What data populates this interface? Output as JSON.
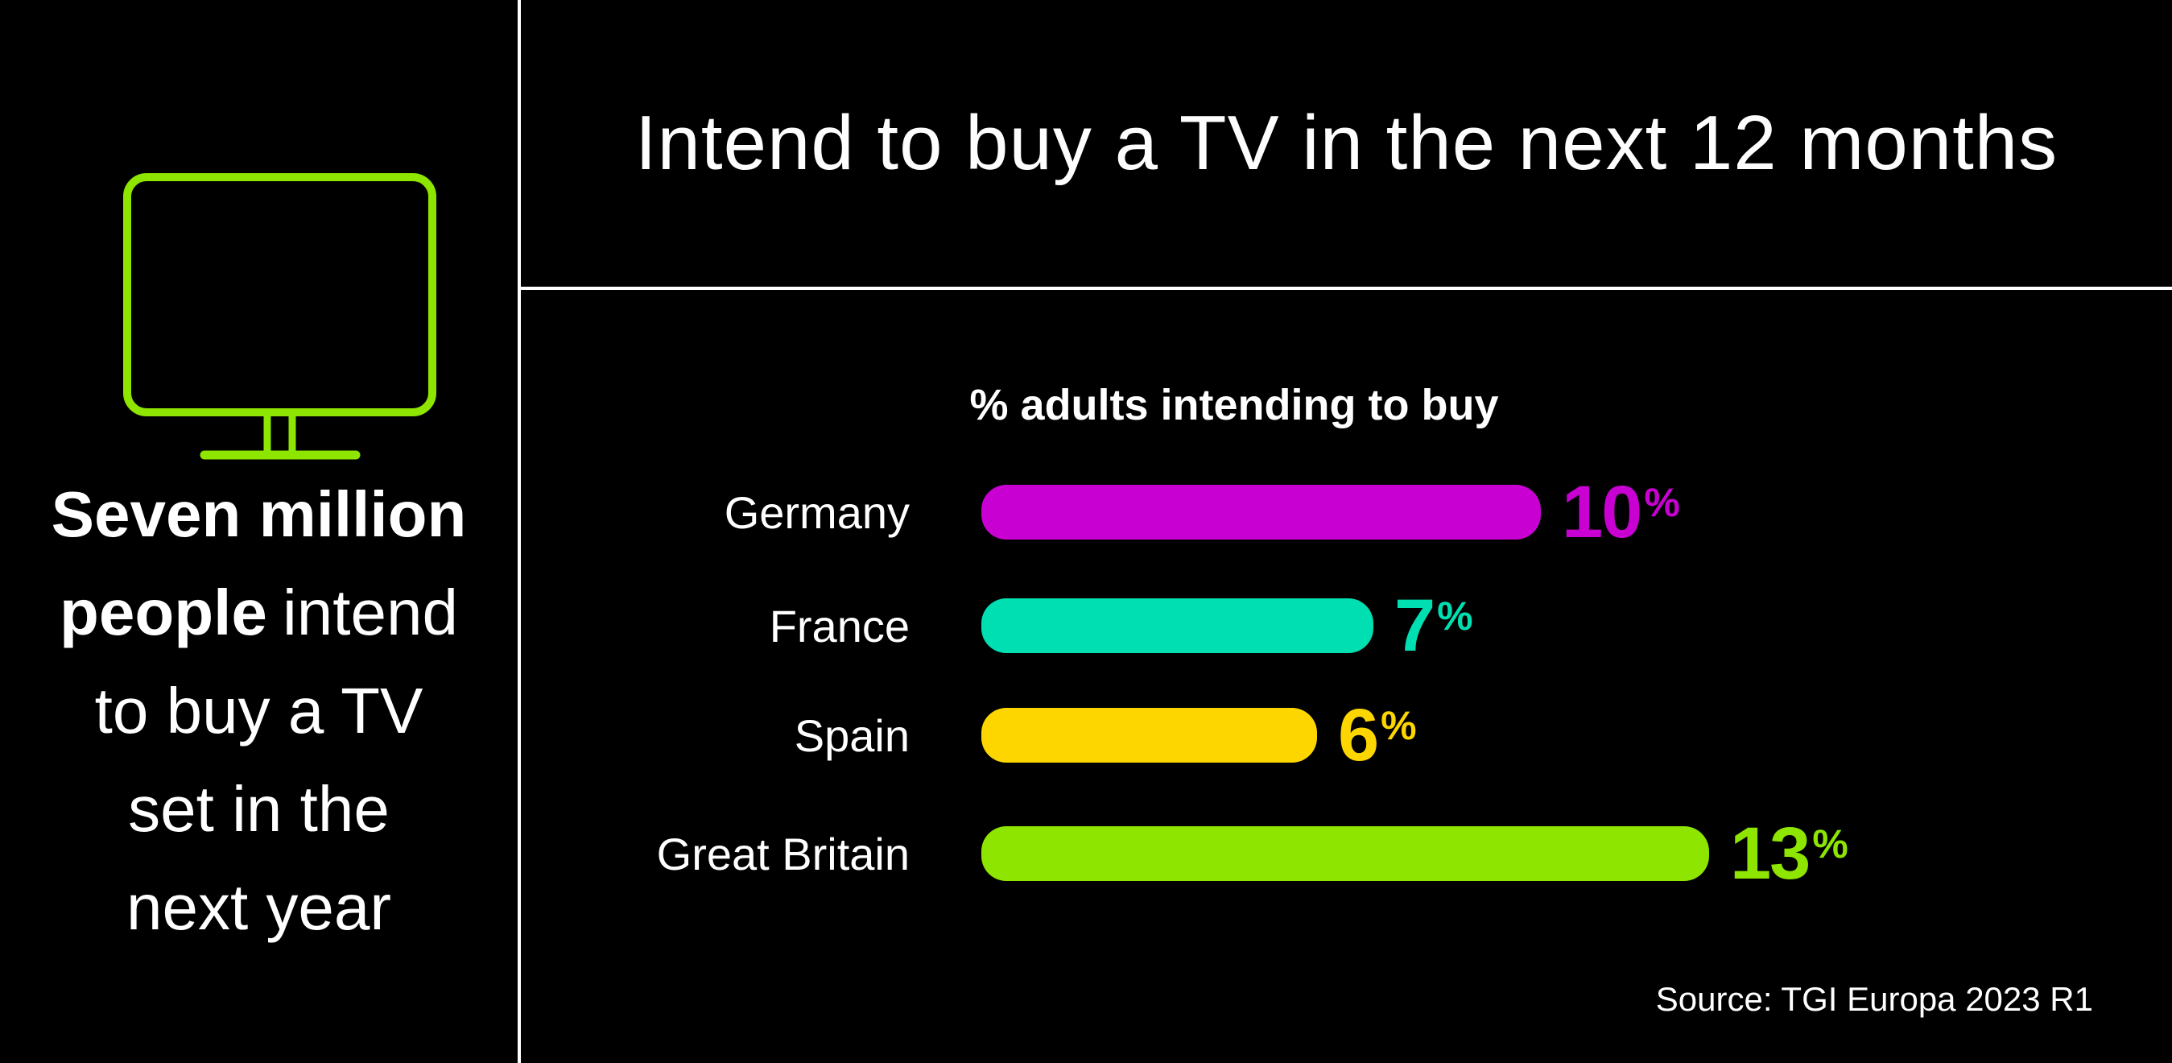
{
  "colors": {
    "background": "#000000",
    "divider": "#FFFFFF",
    "accent_green": "#8DE500",
    "text": "#FFFFFF"
  },
  "left_panel": {
    "icon": "tv-monitor",
    "headline_line1": "Seven million",
    "headline_line2_bold": "people",
    "headline_line2_regular": "intend",
    "headline_line3": "to buy a TV",
    "headline_line4": "set in the",
    "headline_line5": "next year"
  },
  "header": {
    "title": "Intend to buy a TV in the next 12 months"
  },
  "chart_data": {
    "type": "bar",
    "orientation": "horizontal",
    "title": "% adults intending to buy",
    "categories": [
      "Germany",
      "France",
      "Spain",
      "Great Britain"
    ],
    "values": [
      10,
      7,
      6,
      13
    ],
    "value_suffix": "%",
    "bar_colors": [
      "#C800D2",
      "#00DFB2",
      "#FDD600",
      "#8DE500"
    ],
    "xlim": [
      0,
      14
    ],
    "grid": false,
    "legend": false,
    "source": "Source: TGI Europa 2023 R1"
  }
}
